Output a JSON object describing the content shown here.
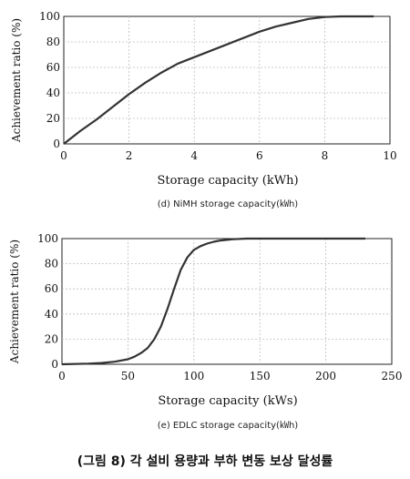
{
  "chart_data": [
    {
      "type": "line",
      "xlabel": "Storage capacity (kWh)",
      "ylabel": "Achievement ratio (%)",
      "caption": "(d) NiMH storage capacity(㎾h)",
      "xlim": [
        0,
        10
      ],
      "ylim": [
        0,
        100
      ],
      "xticks": [
        0,
        2,
        4,
        6,
        8,
        10
      ],
      "yticks": [
        0,
        20,
        40,
        60,
        80,
        100
      ],
      "grid": true,
      "series": [
        {
          "x": [
            0,
            0.5,
            1,
            1.5,
            2,
            2.5,
            3,
            3.5,
            4,
            4.5,
            5,
            5.5,
            6,
            6.5,
            7,
            7.5,
            8,
            8.5,
            9,
            9.5
          ],
          "y": [
            0,
            10,
            19,
            29,
            39,
            48,
            56,
            63,
            68,
            73,
            78,
            83,
            88,
            92,
            95,
            98,
            99.5,
            100,
            100,
            100
          ]
        }
      ]
    },
    {
      "type": "line",
      "xlabel": "Storage capacity (kWs)",
      "ylabel": "Achievement ratio (%)",
      "caption": "(e) EDLC storage capacity(㎾h)",
      "xlim": [
        0,
        250
      ],
      "ylim": [
        0,
        100
      ],
      "xticks": [
        0,
        50,
        100,
        150,
        200,
        250
      ],
      "yticks": [
        0,
        20,
        40,
        60,
        80,
        100
      ],
      "grid": true,
      "series": [
        {
          "x": [
            0,
            20,
            30,
            40,
            50,
            55,
            60,
            65,
            70,
            75,
            80,
            85,
            90,
            95,
            100,
            105,
            110,
            115,
            120,
            130,
            140,
            150,
            230
          ],
          "y": [
            0,
            0.5,
            1,
            2,
            4,
            6,
            9,
            13,
            20,
            30,
            44,
            60,
            75,
            85,
            91,
            94,
            96,
            97.5,
            98.5,
            99.5,
            100,
            100,
            100
          ]
        }
      ]
    }
  ],
  "figure_caption": "(그림 8) 각 설비 용량과 부하 변동 보상 달성률"
}
